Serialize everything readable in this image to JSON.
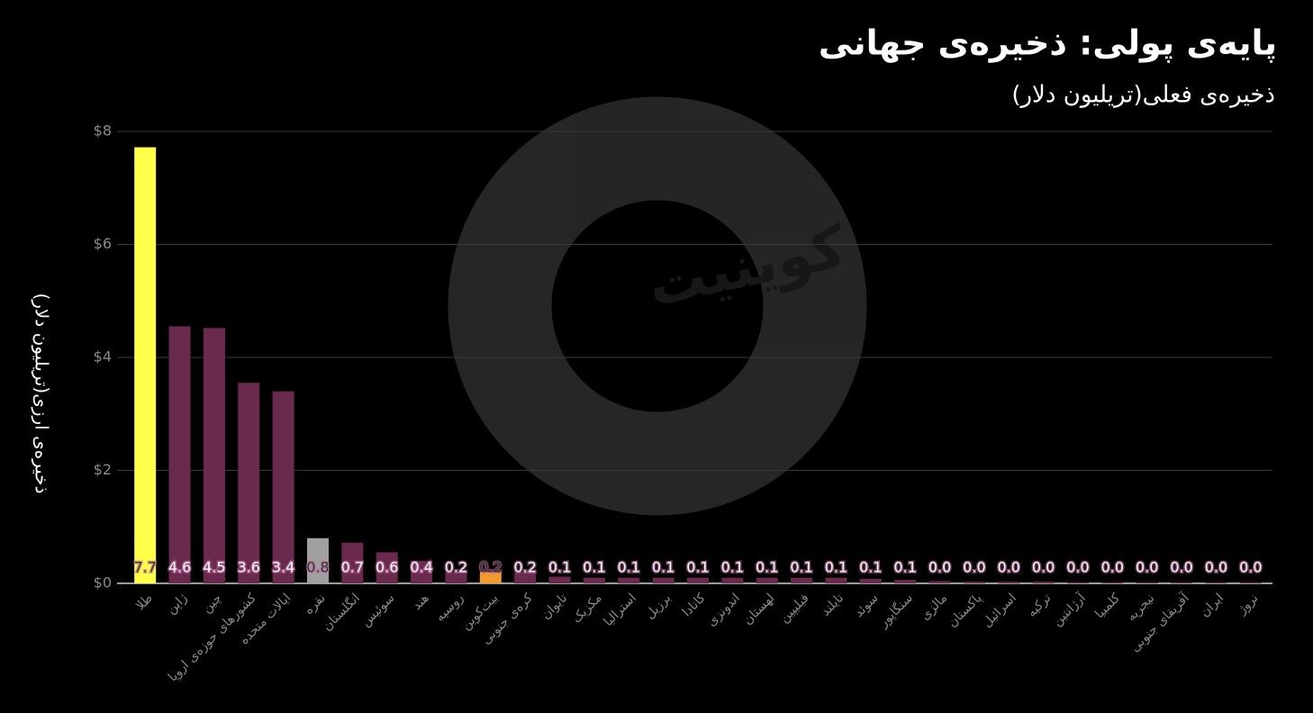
{
  "chart_data": {
    "type": "bar",
    "title": "پایه‌ی پولی: ذخیره‌ی جهانی",
    "subtitle": "ذخیره‌ی فعلی(تریلیون دلار)",
    "y_label": "ذخیره‌ی ارزی(تریلیون دلار)",
    "watermark": "کوینیت",
    "categories": [
      "طلا",
      "ژاپن",
      "چین",
      "کشورهای حوزه‌ی اروپا",
      "ایالات متحده",
      "نقره",
      "انگلستان",
      "سوئیس",
      "هند",
      "روسیه",
      "بیت‌کوین",
      "کره‌ی جنوبی",
      "تایوان",
      "مکزیک",
      "استرالیا",
      "برزیل",
      "کانادا",
      "اندونزی",
      "لهستان",
      "فیلیپین",
      "تایلند",
      "سوئد",
      "سنگاپور",
      "مالزی",
      "پاکستان",
      "اسرائیل",
      "ترکیه",
      "آرژانتین",
      "کلمبیا",
      "نیجریه",
      "آفریقای جنوبی",
      "ایران",
      "نروژ"
    ],
    "values": [
      7.72,
      4.55,
      4.52,
      3.55,
      3.4,
      0.8,
      0.72,
      0.55,
      0.4,
      0.2,
      0.2,
      0.2,
      0.12,
      0.1,
      0.1,
      0.1,
      0.1,
      0.1,
      0.1,
      0.1,
      0.1,
      0.08,
      0.06,
      0.04,
      0.03,
      0.03,
      0.03,
      0.02,
      0.02,
      0.02,
      0.02,
      0.02,
      0.02
    ],
    "value_labels": [
      "7.7",
      "4.6",
      "4.5",
      "3.6",
      "3.4",
      "0.8",
      "0.7",
      "0.6",
      "0.4",
      "0.2",
      "0.2",
      "0.2",
      "0.1",
      "0.1",
      "0.1",
      "0.1",
      "0.1",
      "0.1",
      "0.1",
      "0.1",
      "0.1",
      "0.1",
      "0.1",
      "0.0",
      "0.0",
      "0.0",
      "0.0",
      "0.0",
      "0.0",
      "0.0",
      "0.0",
      "0.0",
      "0.0"
    ],
    "colors": [
      "#ffff4a",
      "#6a2a4e",
      "#6a2a4e",
      "#6a2a4e",
      "#6a2a4e",
      "#a0a0a0",
      "#6a2a4e",
      "#6a2a4e",
      "#6a2a4e",
      "#6a2a4e",
      "#f29a2e",
      "#6a2a4e",
      "#6a2a4e",
      "#6a2a4e",
      "#6a2a4e",
      "#6a2a4e",
      "#6a2a4e",
      "#6a2a4e",
      "#6a2a4e",
      "#6a2a4e",
      "#6a2a4e",
      "#6a2a4e",
      "#6a2a4e",
      "#6a2a4e",
      "#6a2a4e",
      "#6a2a4e",
      "#6a2a4e",
      "#6a2a4e",
      "#6a2a4e",
      "#6a2a4e",
      "#6a2a4e",
      "#6a2a4e",
      "#6a2a4e"
    ],
    "ylim": [
      0,
      8
    ],
    "yticks": [
      {
        "value": 0,
        "label": "$0"
      },
      {
        "value": 2,
        "label": "$2"
      },
      {
        "value": 4,
        "label": "$4"
      },
      {
        "value": 6,
        "label": "$6"
      },
      {
        "value": 8,
        "label": "$8"
      }
    ],
    "grid": true
  }
}
